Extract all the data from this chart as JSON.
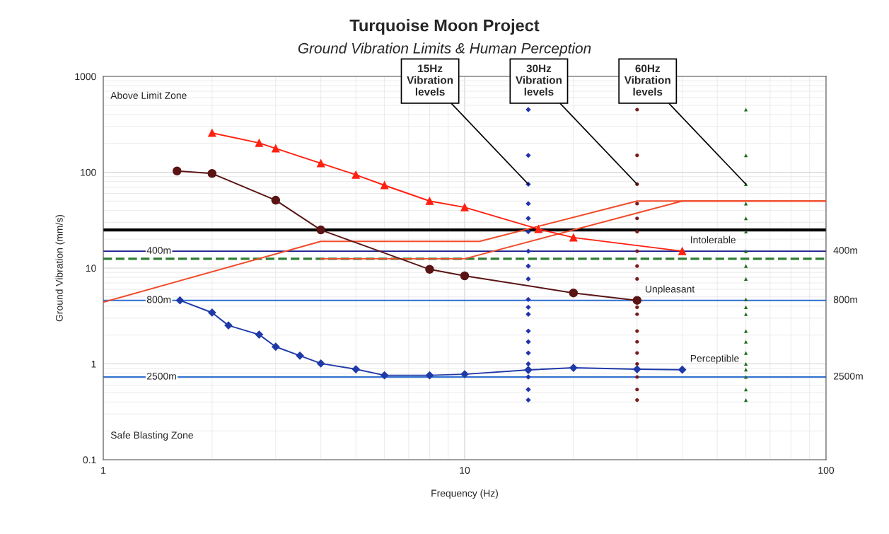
{
  "chart_data": {
    "type": "line",
    "title": "Turquoise Moon Project",
    "subtitle": "Ground Vibration Limits & Human Perception",
    "xlabel": "Frequency (Hz)",
    "ylabel": "Ground Vibration (mm/s)",
    "log": "xy",
    "xlim": [
      1,
      100
    ],
    "xticks": [
      1,
      10,
      100
    ],
    "ylim": [
      0.1,
      1000
    ],
    "yticks": [
      0.1,
      1,
      10,
      100,
      1000
    ],
    "grid": true,
    "legend": false,
    "series": [
      {
        "color": "#f04a28",
        "marker": "none",
        "x": [
          1,
          4,
          11,
          30,
          100
        ],
        "values": [
          4.4,
          19,
          19,
          50,
          50
        ]
      },
      {
        "color": "#f04a28",
        "marker": "none",
        "x": [
          4,
          10,
          40,
          100
        ],
        "values": [
          12.5,
          12.5,
          50,
          50
        ]
      },
      {
        "name": "Intolerable",
        "color": "#ff2010",
        "marker": "triangle",
        "x": [
          2,
          2.7,
          3,
          4,
          5,
          6,
          8,
          10,
          16,
          20,
          40
        ],
        "values": [
          257,
          202,
          177,
          124,
          94,
          73,
          50,
          43,
          25.5,
          20.8,
          15
        ]
      },
      {
        "name": "Unpleasant",
        "color": "#5a1414",
        "marker": "circle",
        "x": [
          1.6,
          2,
          3,
          4,
          8,
          10,
          20,
          30
        ],
        "values": [
          103,
          97,
          51,
          25,
          9.7,
          8.3,
          5.5,
          4.6
        ]
      },
      {
        "name": "Perceptible",
        "color": "#1f3aa8",
        "marker": "diamond",
        "x": [
          1.63,
          2,
          2.22,
          2.7,
          3,
          3.5,
          4,
          5,
          6,
          8,
          10,
          15,
          20,
          30,
          40
        ],
        "values": [
          4.6,
          3.43,
          2.52,
          2.02,
          1.51,
          1.22,
          1.01,
          0.88,
          0.76,
          0.76,
          0.78,
          0.865,
          0.91,
          0.88,
          0.87
        ]
      },
      {
        "type": "scatter",
        "color": "#2233b0",
        "marker": "diamond",
        "x": [
          15,
          15,
          15,
          15,
          15,
          15,
          15,
          15,
          15,
          15,
          15,
          15,
          15,
          15,
          15,
          15,
          15,
          15,
          15
        ],
        "values": [
          450,
          150,
          75,
          47,
          33,
          24,
          15,
          10.5,
          7.7,
          4.7,
          3.9,
          3.3,
          2.2,
          1.7,
          1.3,
          1.0,
          0.73,
          0.54,
          0.42
        ]
      },
      {
        "type": "scatter",
        "color": "#7a1a1a",
        "marker": "circle",
        "x": [
          30,
          30,
          30,
          30,
          30,
          30,
          30,
          30,
          30,
          30,
          30,
          30,
          30,
          30,
          30,
          30,
          30,
          30
        ],
        "values": [
          450,
          150,
          75,
          47,
          33,
          24,
          15,
          10.5,
          7.7,
          3.9,
          3.3,
          2.2,
          1.7,
          1.3,
          1.0,
          0.73,
          0.54,
          0.42
        ]
      },
      {
        "type": "scatter",
        "color": "#1e6b1e",
        "marker": "triangle",
        "x": [
          60,
          60,
          60,
          60,
          60,
          60,
          60,
          60,
          60,
          60,
          60,
          60,
          60,
          60,
          60,
          60,
          60,
          60,
          60,
          60
        ],
        "values": [
          450,
          150,
          75,
          47,
          33,
          24,
          15,
          10.5,
          7.7,
          4.7,
          3.9,
          3.3,
          2.2,
          1.7,
          1.3,
          1.0,
          0.87,
          0.73,
          0.54,
          0.42
        ]
      }
    ],
    "ref_lines": [
      {
        "axis": "y",
        "value": 25,
        "color": "#000000",
        "line_style": "solid"
      },
      {
        "axis": "y",
        "value": 15,
        "label": "400m",
        "color": "#1a1a8c",
        "line_style": "solid"
      },
      {
        "axis": "y",
        "value": 12.5,
        "color": "#2e7d32",
        "line_style": "dashed"
      },
      {
        "axis": "y",
        "value": 4.6,
        "label": "800m",
        "color": "#2e6fd0",
        "line_style": "solid"
      },
      {
        "axis": "y",
        "value": 0.73,
        "label": "2500m",
        "color": "#2e6fd0",
        "line_style": "solid"
      }
    ],
    "annotations": [
      "Above Limit Zone",
      "Safe Blasting Zone",
      {
        "text": "15Hz\nVibration\nlevels",
        "x": 15,
        "y": 75
      },
      {
        "text": "30Hz\nVibration\nlevels",
        "x": 30,
        "y": 75
      },
      {
        "text": "60Hz\nVibration\nlevels",
        "x": 60,
        "y": 75
      }
    ]
  }
}
